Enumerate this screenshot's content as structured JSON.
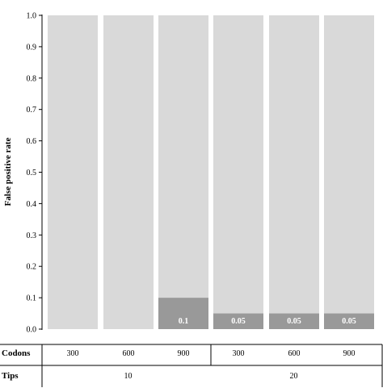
{
  "chart_data": {
    "type": "bar",
    "stacked": true,
    "ylabel": "False positive rate",
    "ylim": [
      0,
      1.0
    ],
    "yticks": [
      "0.0",
      "0.1",
      "0.2",
      "0.3",
      "0.4",
      "0.5",
      "0.6",
      "0.7",
      "0.8",
      "0.9",
      "1.0"
    ],
    "grid": false,
    "categories": [
      "300",
      "600",
      "900",
      "300",
      "600",
      "900"
    ],
    "values": [
      0,
      0,
      0.1,
      0.05,
      0.05,
      0.05
    ],
    "data_labels": [
      "",
      "",
      "0.1",
      "0.05",
      "0.05",
      "0.05"
    ],
    "total": 1.0,
    "colors": {
      "value": "#999999",
      "remainder": "#d9d9d9"
    },
    "table": {
      "codons_label": "Codons",
      "tips_label": "Tips",
      "tips_groups": [
        {
          "label": "10",
          "span": 3
        },
        {
          "label": "20",
          "span": 3
        }
      ]
    }
  }
}
